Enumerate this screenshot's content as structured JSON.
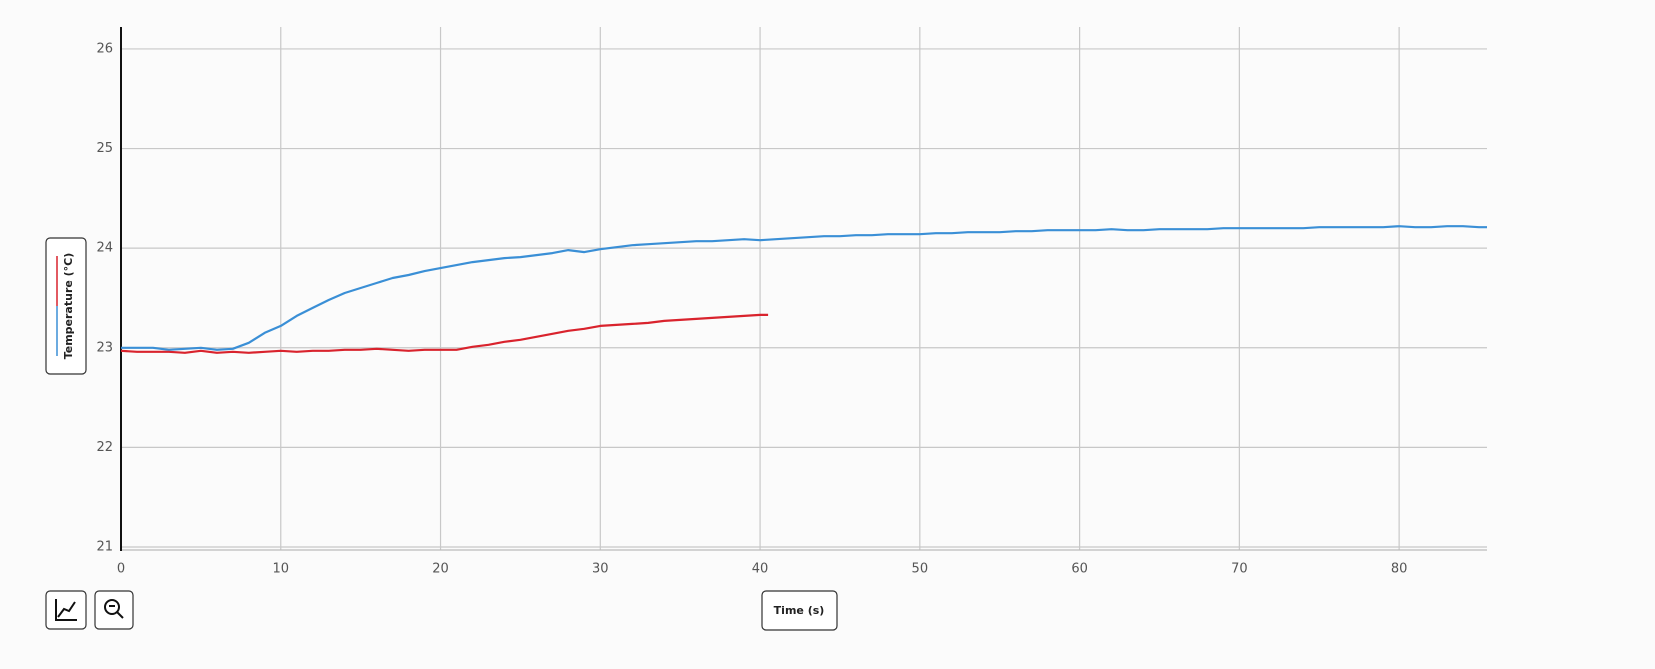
{
  "chart_data": {
    "type": "line",
    "xlabel": "Time (s)",
    "ylabel": "Temperature (°C)",
    "xlim": [
      0,
      85.5
    ],
    "ylim": [
      21,
      26.2
    ],
    "xticks": [
      0,
      10,
      20,
      30,
      40,
      50,
      60,
      70,
      80
    ],
    "yticks": [
      21,
      22,
      23,
      24,
      25,
      26
    ],
    "grid": true,
    "series": [
      {
        "color": "#3a8fd6",
        "x": [
          0,
          1,
          2,
          3,
          4,
          5,
          6,
          7,
          8,
          9,
          10,
          11,
          12,
          13,
          14,
          15,
          16,
          17,
          18,
          19,
          20,
          21,
          22,
          23,
          24,
          25,
          26,
          27,
          28,
          29,
          30,
          31,
          32,
          33,
          34,
          35,
          36,
          37,
          38,
          39,
          40,
          41,
          42,
          43,
          44,
          45,
          46,
          47,
          48,
          49,
          50,
          51,
          52,
          53,
          54,
          55,
          56,
          57,
          58,
          59,
          60,
          61,
          62,
          63,
          64,
          65,
          66,
          67,
          68,
          69,
          70,
          71,
          72,
          73,
          74,
          75,
          76,
          77,
          78,
          79,
          80,
          81,
          82,
          83,
          84,
          85,
          85.5
        ],
        "values": [
          23.0,
          23.0,
          23.0,
          22.98,
          22.99,
          23.0,
          22.98,
          22.99,
          23.05,
          23.15,
          23.22,
          23.32,
          23.4,
          23.48,
          23.55,
          23.6,
          23.65,
          23.7,
          23.73,
          23.77,
          23.8,
          23.83,
          23.86,
          23.88,
          23.9,
          23.91,
          23.93,
          23.95,
          23.98,
          23.96,
          23.99,
          24.01,
          24.03,
          24.04,
          24.05,
          24.06,
          24.07,
          24.07,
          24.08,
          24.09,
          24.08,
          24.09,
          24.1,
          24.11,
          24.12,
          24.12,
          24.13,
          24.13,
          24.14,
          24.14,
          24.14,
          24.15,
          24.15,
          24.16,
          24.16,
          24.16,
          24.17,
          24.17,
          24.18,
          24.18,
          24.18,
          24.18,
          24.19,
          24.18,
          24.18,
          24.19,
          24.19,
          24.19,
          24.19,
          24.2,
          24.2,
          24.2,
          24.2,
          24.2,
          24.2,
          24.21,
          24.21,
          24.21,
          24.21,
          24.21,
          24.22,
          24.21,
          24.21,
          24.22,
          24.22,
          24.21,
          24.21
        ]
      },
      {
        "color": "#d9232d",
        "x": [
          0,
          1,
          2,
          3,
          4,
          5,
          6,
          7,
          8,
          9,
          10,
          11,
          12,
          13,
          14,
          15,
          16,
          17,
          18,
          19,
          20,
          21,
          22,
          23,
          24,
          25,
          26,
          27,
          28,
          29,
          30,
          31,
          32,
          33,
          34,
          35,
          36,
          37,
          38,
          39,
          40,
          40.5
        ],
        "values": [
          22.97,
          22.96,
          22.96,
          22.96,
          22.95,
          22.97,
          22.95,
          22.96,
          22.95,
          22.96,
          22.97,
          22.96,
          22.97,
          22.97,
          22.98,
          22.98,
          22.99,
          22.98,
          22.97,
          22.98,
          22.98,
          22.98,
          23.01,
          23.03,
          23.06,
          23.08,
          23.11,
          23.14,
          23.17,
          23.19,
          23.22,
          23.23,
          23.24,
          23.25,
          23.27,
          23.28,
          23.29,
          23.3,
          23.31,
          23.32,
          23.33,
          23.33
        ]
      }
    ]
  }
}
